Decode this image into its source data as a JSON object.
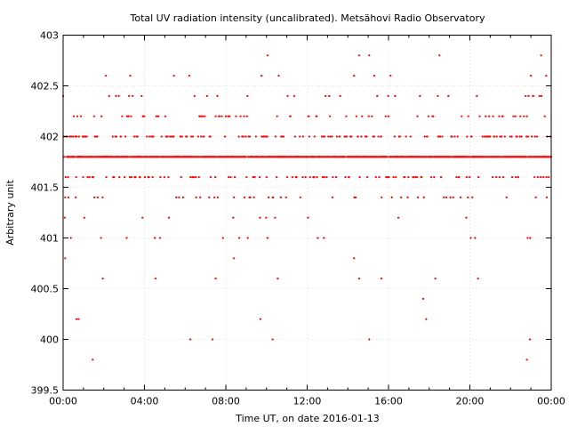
{
  "chart_data": {
    "type": "scatter",
    "title": "Total UV radiation intensity (uncalibrated). Metsähovi Radio Observatory",
    "xlabel": "Time UT, on date 2016-01-13",
    "ylabel": "Arbitrary unit",
    "x_unit": "hours UT",
    "xlim": [
      0,
      24
    ],
    "ylim": [
      399.5,
      403
    ],
    "x_ticks": [
      0,
      4,
      8,
      12,
      16,
      20,
      24
    ],
    "x_tick_labels": [
      "00:00",
      "04:00",
      "08:00",
      "12:00",
      "16:00",
      "20:00",
      "00:00"
    ],
    "y_ticks": [
      399.5,
      400,
      400.5,
      401,
      401.5,
      402,
      402.5,
      403
    ],
    "y_tick_labels": [
      "399.5",
      "400",
      "400.5",
      "401",
      "401.5",
      "402",
      "402.5",
      "403"
    ],
    "grid": true,
    "color": "#ff0000",
    "series": [
      {
        "x_start": 0,
        "x_end": 24,
        "sample_interval_hours": 0.02,
        "baseline": 401.8,
        "levels": [
          401.8,
          401.6,
          402.0,
          401.4,
          402.2,
          401.2,
          402.4,
          401.0,
          402.6,
          400.8,
          402.8,
          400.6,
          400.4,
          400.2,
          400.0,
          399.8
        ],
        "outliers": [
          {
            "x": 0.1,
            "y": 400.8
          },
          {
            "x": 0.65,
            "y": 400.2
          },
          {
            "x": 0.75,
            "y": 400.2
          },
          {
            "x": 1.45,
            "y": 399.8
          },
          {
            "x": 1.95,
            "y": 400.6
          },
          {
            "x": 4.5,
            "y": 401.0
          },
          {
            "x": 4.55,
            "y": 400.6
          },
          {
            "x": 6.25,
            "y": 400.0
          },
          {
            "x": 7.35,
            "y": 400.0
          },
          {
            "x": 7.5,
            "y": 400.6
          },
          {
            "x": 8.4,
            "y": 400.8
          },
          {
            "x": 9.7,
            "y": 400.2
          },
          {
            "x": 10.05,
            "y": 401.0
          },
          {
            "x": 10.3,
            "y": 400.0
          },
          {
            "x": 10.55,
            "y": 400.6
          },
          {
            "x": 14.3,
            "y": 400.8
          },
          {
            "x": 14.55,
            "y": 400.6
          },
          {
            "x": 15.05,
            "y": 400.0
          },
          {
            "x": 15.65,
            "y": 400.6
          },
          {
            "x": 17.7,
            "y": 400.4
          },
          {
            "x": 17.85,
            "y": 400.2
          },
          {
            "x": 18.3,
            "y": 400.6
          },
          {
            "x": 20.25,
            "y": 401.0
          },
          {
            "x": 20.4,
            "y": 400.6
          },
          {
            "x": 22.8,
            "y": 399.8
          },
          {
            "x": 22.95,
            "y": 400.0
          },
          {
            "x": 9.75,
            "y": 402.6
          },
          {
            "x": 10.05,
            "y": 402.8
          },
          {
            "x": 14.55,
            "y": 402.8
          },
          {
            "x": 15.05,
            "y": 402.8
          },
          {
            "x": 18.5,
            "y": 402.8
          },
          {
            "x": 23.5,
            "y": 402.8
          },
          {
            "x": 2.1,
            "y": 402.6
          },
          {
            "x": 3.3,
            "y": 402.6
          },
          {
            "x": 5.45,
            "y": 402.6
          },
          {
            "x": 6.2,
            "y": 402.6
          },
          {
            "x": 10.6,
            "y": 402.6
          },
          {
            "x": 14.3,
            "y": 402.6
          },
          {
            "x": 15.3,
            "y": 402.6
          },
          {
            "x": 16.1,
            "y": 402.6
          },
          {
            "x": 23.0,
            "y": 402.6
          },
          {
            "x": 23.75,
            "y": 402.6
          }
        ]
      }
    ]
  }
}
